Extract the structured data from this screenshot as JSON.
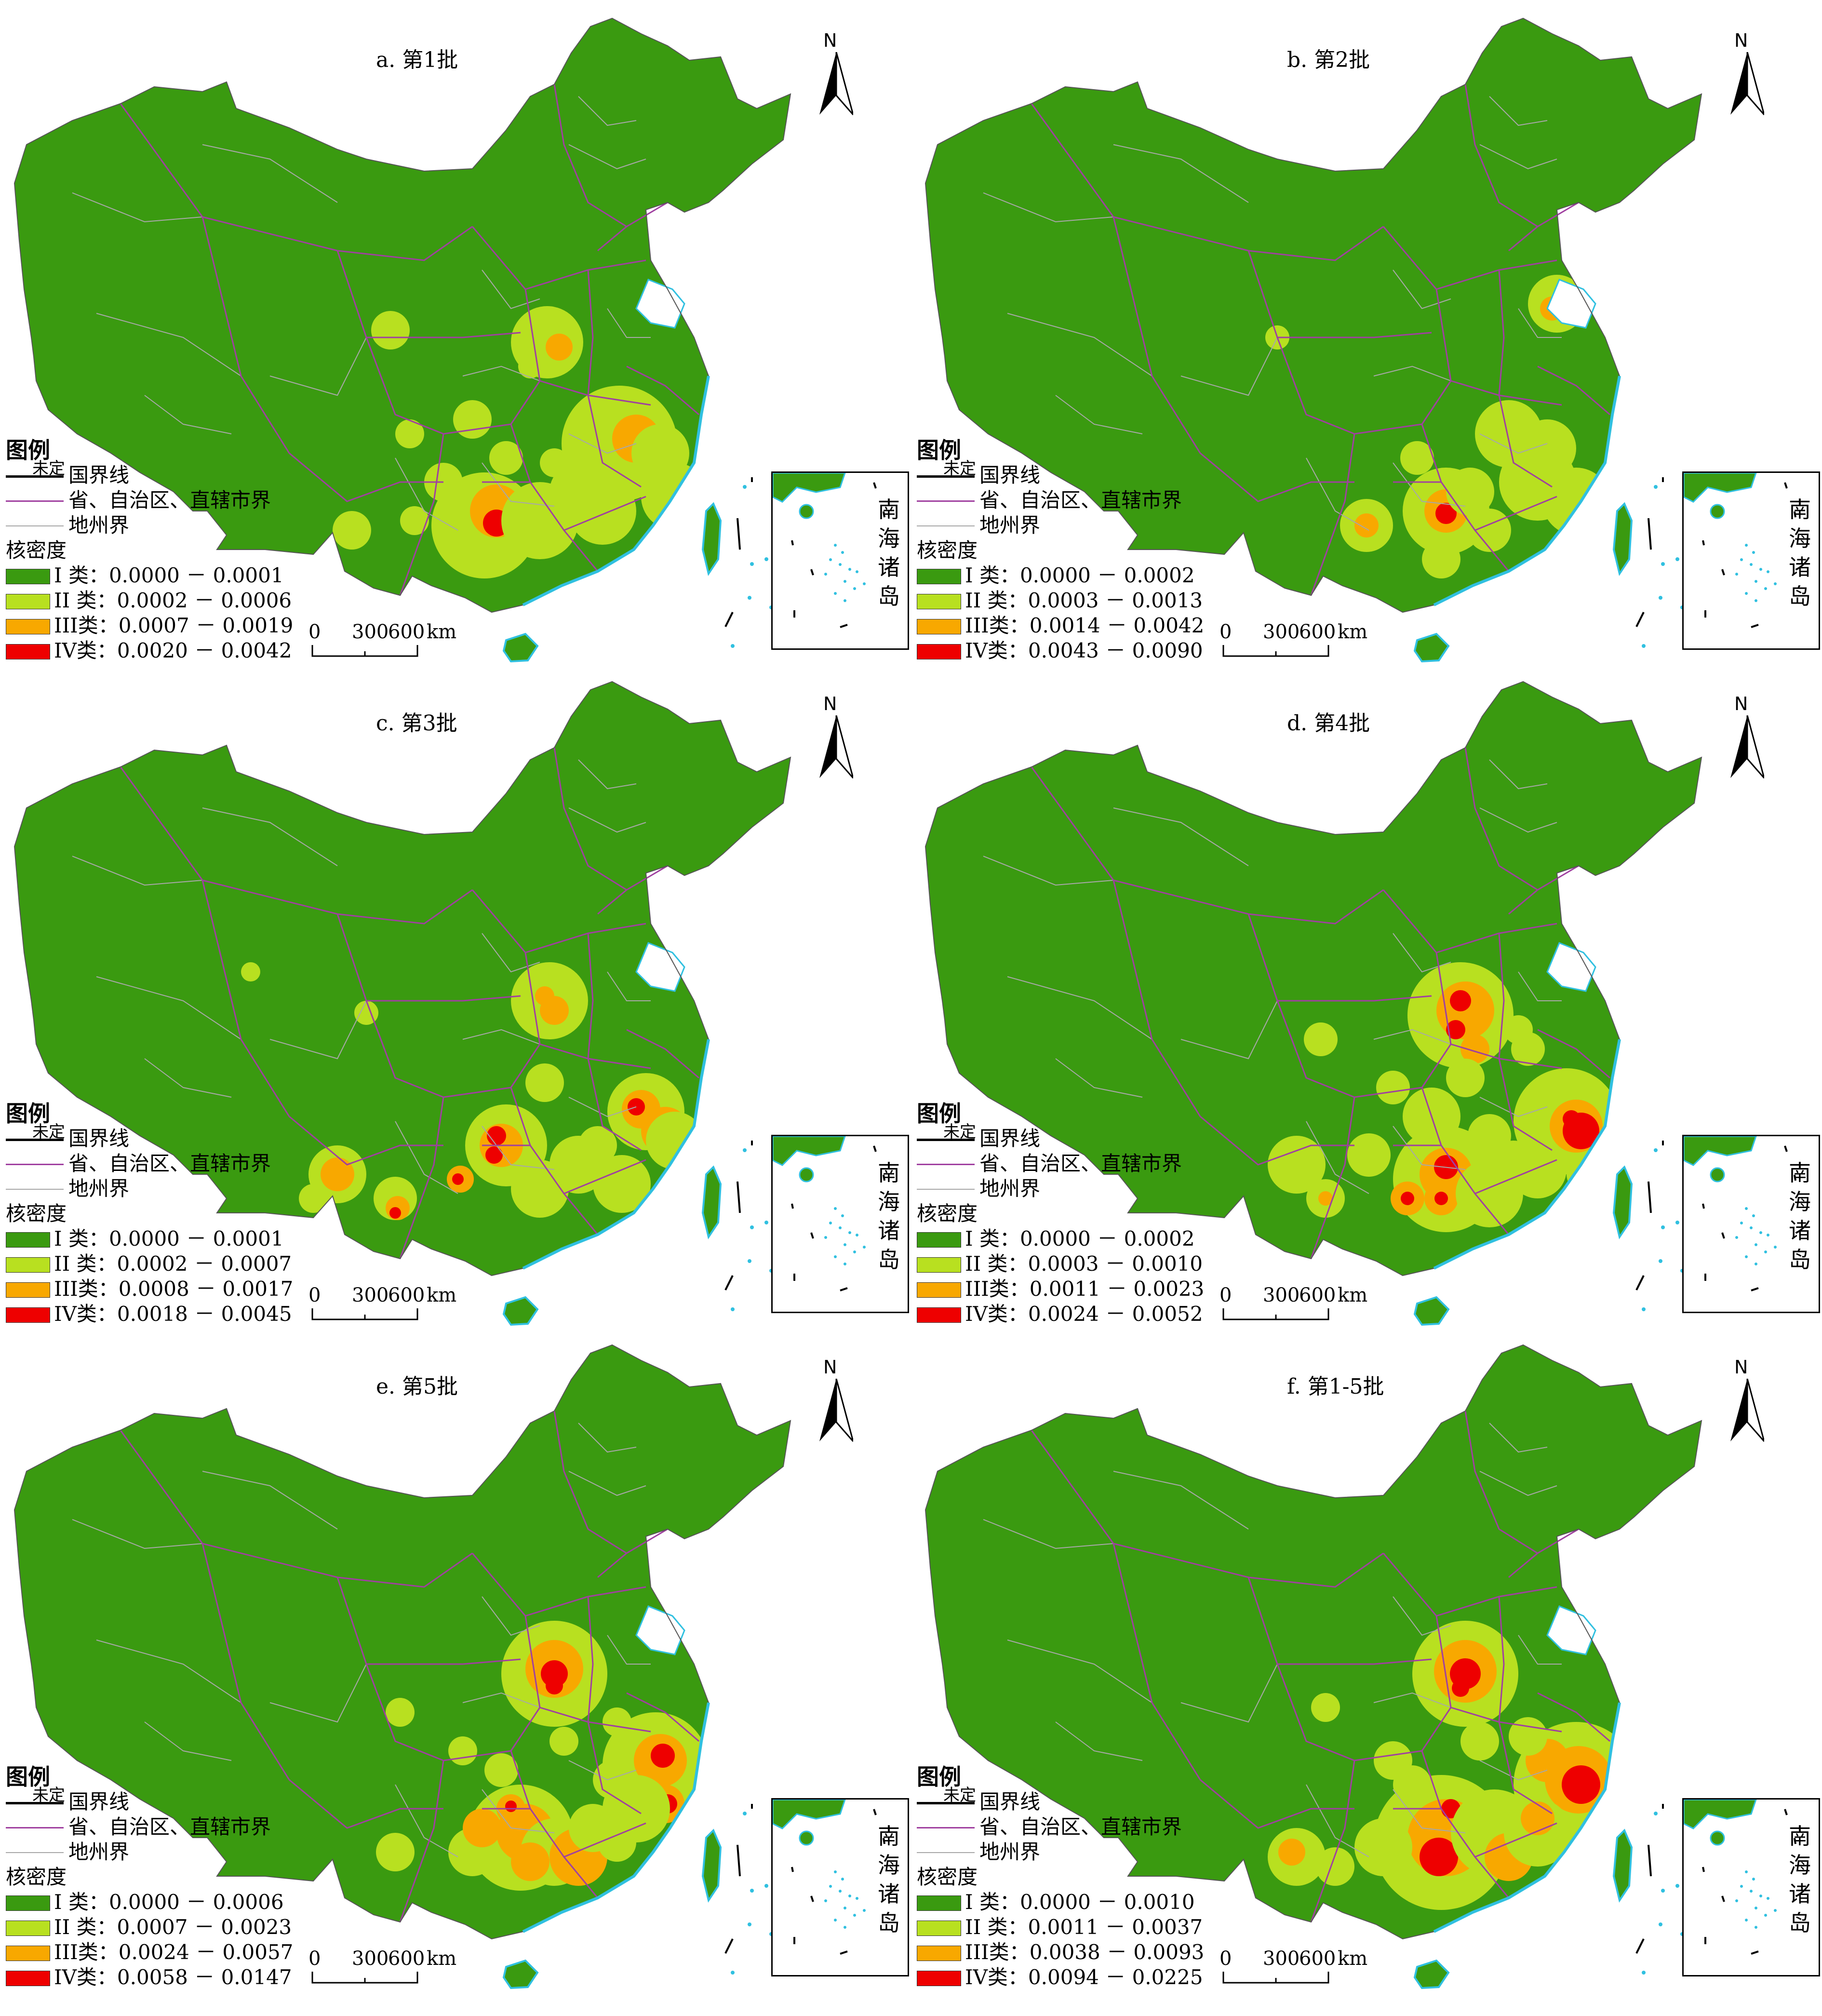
{
  "colors": {
    "class_I": "#3a9a10",
    "class_II": "#b8e020",
    "class_III": "#f8a800",
    "class_IV": "#ee0000",
    "province_boundary": "#a040a0",
    "prefecture_boundary": "#a8a8a8",
    "coast": "#30c0e0"
  },
  "legend_common": {
    "title": "图例",
    "undetermined": "未定",
    "national_boundary": "国界线",
    "province_boundary": "省、自治区、直辖市界",
    "prefecture_boundary": "地州界",
    "density_title": "核密度"
  },
  "north_label": "N",
  "scale": {
    "labels": [
      "0",
      "300",
      "600"
    ],
    "unit": "km"
  },
  "inset": {
    "chars": [
      "南",
      "海",
      "诸",
      "岛"
    ]
  },
  "panels": [
    {
      "id": "a",
      "title": "a. 第1批",
      "classes": [
        {
          "label": "I 类：0.0000 － 0.0001"
        },
        {
          "label": "II 类：0.0002 － 0.0006"
        },
        {
          "label": "III类：0.0007 － 0.0019"
        },
        {
          "label": "IV类：0.0020 － 0.0042"
        }
      ]
    },
    {
      "id": "b",
      "title": "b. 第2批",
      "classes": [
        {
          "label": "I 类：0.0000 － 0.0002"
        },
        {
          "label": "II 类：0.0003 － 0.0013"
        },
        {
          "label": "III类：0.0014 － 0.0042"
        },
        {
          "label": "IV类：0.0043 － 0.0090"
        }
      ]
    },
    {
      "id": "c",
      "title": "c. 第3批",
      "classes": [
        {
          "label": "I 类：0.0000 － 0.0001"
        },
        {
          "label": "II 类：0.0002 － 0.0007"
        },
        {
          "label": "III类：0.0008 － 0.0017"
        },
        {
          "label": "IV类：0.0018 － 0.0045"
        }
      ]
    },
    {
      "id": "d",
      "title": "d. 第4批",
      "classes": [
        {
          "label": "I 类：0.0000 － 0.0002"
        },
        {
          "label": "II 类：0.0003 － 0.0010"
        },
        {
          "label": "III类：0.0011 － 0.0023"
        },
        {
          "label": "IV类：0.0024 － 0.0052"
        }
      ]
    },
    {
      "id": "e",
      "title": "e. 第5批",
      "classes": [
        {
          "label": "I 类：0.0000 － 0.0006"
        },
        {
          "label": "II 类：0.0007 － 0.0023"
        },
        {
          "label": "III类：0.0024 － 0.0057"
        },
        {
          "label": "IV类：0.0058 － 0.0147"
        }
      ]
    },
    {
      "id": "f",
      "title": "f. 第1-5批",
      "classes": [
        {
          "label": "I 类：0.0000 － 0.0010"
        },
        {
          "label": "II 类：0.0011 － 0.0037"
        },
        {
          "label": "III类：0.0038 － 0.0093"
        },
        {
          "label": "IV类：0.0094 － 0.0225"
        }
      ]
    }
  ]
}
